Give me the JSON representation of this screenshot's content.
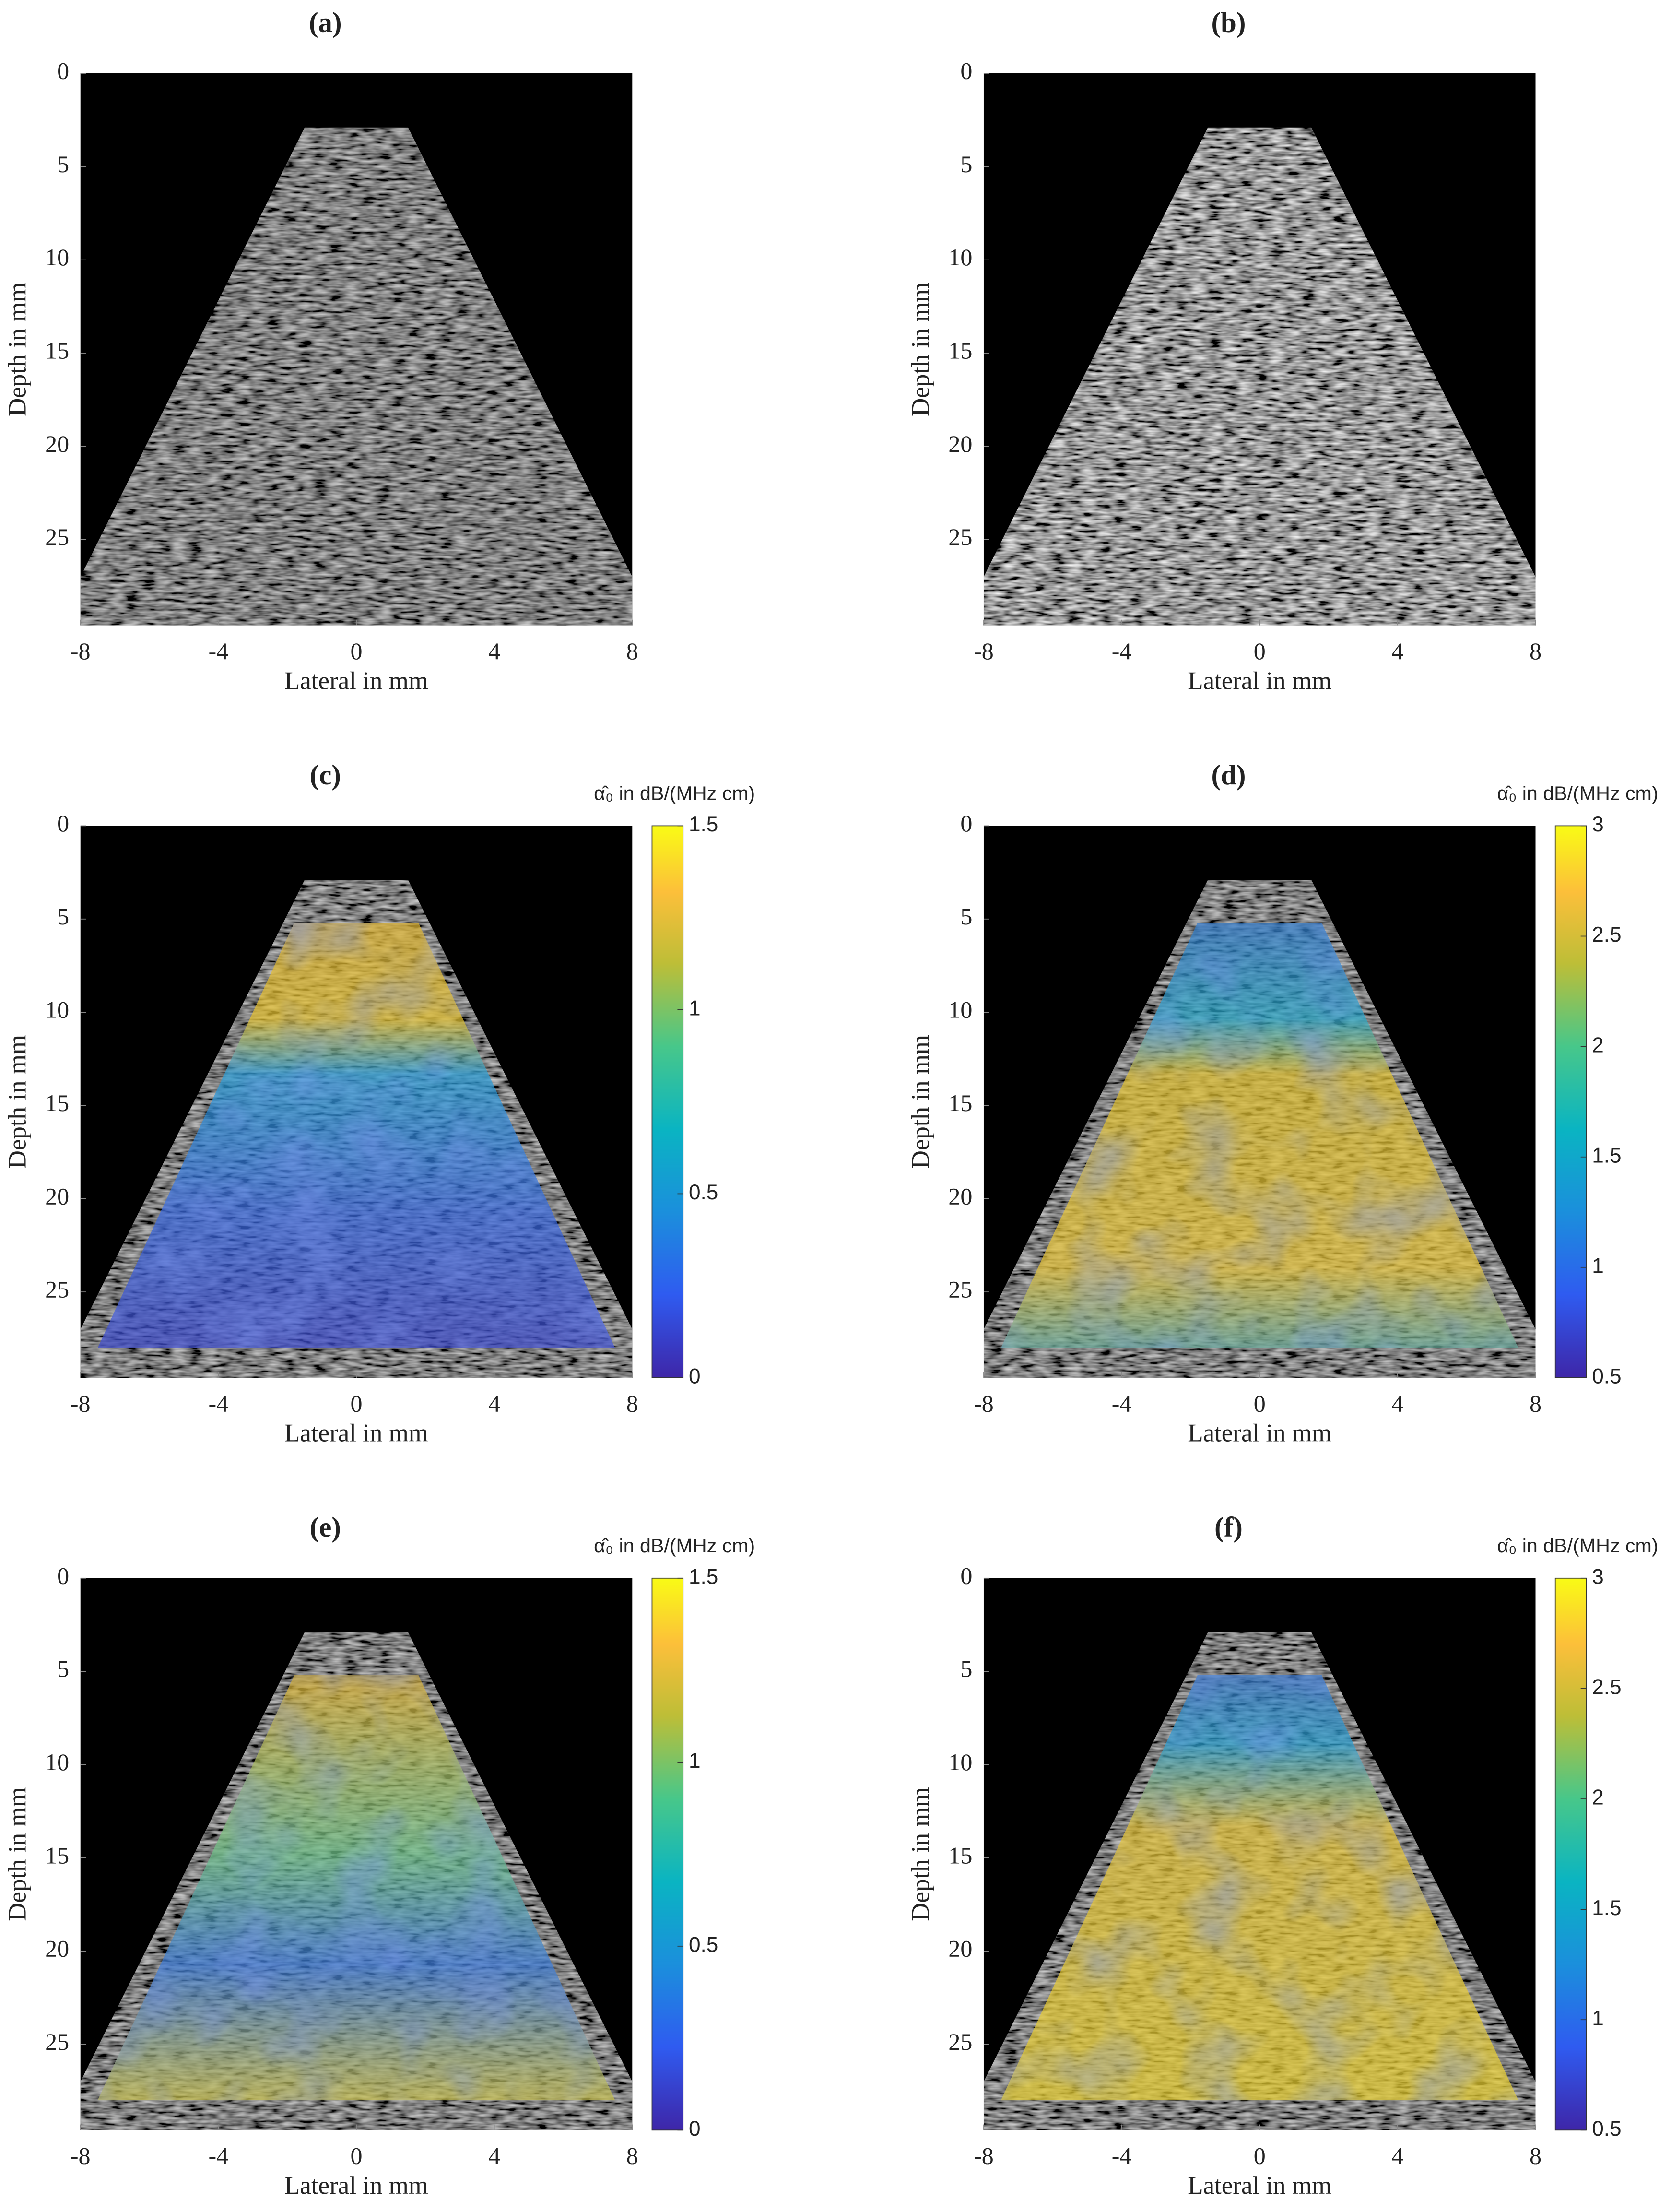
{
  "chart_data": [
    {
      "type": "image",
      "title": "(a)",
      "xlabel": "Lateral in mm",
      "ylabel": "Depth in mm",
      "xlim": [
        -8,
        8
      ],
      "ylim": [
        0,
        29.6
      ],
      "y_reversed": true,
      "xticks": [
        -8,
        -4,
        0,
        4,
        8
      ],
      "yticks": [
        0,
        5,
        10,
        15,
        20,
        25
      ]
    },
    {
      "type": "image",
      "title": "(b)",
      "xlabel": "Lateral in mm",
      "ylabel": "Depth in mm",
      "xlim": [
        -8,
        8
      ],
      "ylim": [
        0,
        29.6
      ],
      "y_reversed": true,
      "xticks": [
        -8,
        -4,
        0,
        4,
        8
      ],
      "yticks": [
        0,
        5,
        10,
        15,
        20,
        25
      ]
    },
    {
      "type": "image",
      "title": "(c)",
      "xlabel": "Lateral in mm",
      "ylabel": "Depth in mm",
      "xlim": [
        -8,
        8
      ],
      "ylim": [
        0,
        29.6
      ],
      "y_reversed": true,
      "xticks": [
        -8,
        -4,
        0,
        4,
        8
      ],
      "yticks": [
        0,
        5,
        10,
        15,
        20,
        25
      ],
      "colorbar": {
        "label": "α̂₀ in dB/(MHz cm)",
        "lim": [
          0,
          1.5
        ],
        "ticks": [
          0,
          0.5,
          1,
          1.5
        ]
      }
    },
    {
      "type": "image",
      "title": "(d)",
      "xlabel": "Lateral in mm",
      "ylabel": "Depth in mm",
      "xlim": [
        -8,
        8
      ],
      "ylim": [
        0,
        29.6
      ],
      "y_reversed": true,
      "xticks": [
        -8,
        -4,
        0,
        4,
        8
      ],
      "yticks": [
        0,
        5,
        10,
        15,
        20,
        25
      ],
      "colorbar": {
        "label": "α̂₀ in dB/(MHz cm)",
        "lim": [
          0.5,
          3
        ],
        "ticks": [
          0.5,
          1,
          1.5,
          2,
          2.5,
          3
        ]
      }
    },
    {
      "type": "image",
      "title": "(e)",
      "xlabel": "Lateral in mm",
      "ylabel": "Depth in mm",
      "xlim": [
        -8,
        8
      ],
      "ylim": [
        0,
        29.6
      ],
      "y_reversed": true,
      "xticks": [
        -8,
        -4,
        0,
        4,
        8
      ],
      "yticks": [
        0,
        5,
        10,
        15,
        20,
        25
      ],
      "colorbar": {
        "label": "α̂₀ in dB/(MHz cm)",
        "lim": [
          0,
          1.5
        ],
        "ticks": [
          0,
          0.5,
          1,
          1.5
        ]
      }
    },
    {
      "type": "image",
      "title": "(f)",
      "xlabel": "Lateral in mm",
      "ylabel": "Depth in mm",
      "xlim": [
        -8,
        8
      ],
      "ylim": [
        0,
        29.6
      ],
      "y_reversed": true,
      "xticks": [
        -8,
        -4,
        0,
        4,
        8
      ],
      "yticks": [
        0,
        5,
        10,
        15,
        20,
        25
      ],
      "colorbar": {
        "label": "α̂₀ in dB/(MHz cm)",
        "lim": [
          0.5,
          3
        ],
        "ticks": [
          0.5,
          1,
          1.5,
          2,
          2.5,
          3
        ]
      }
    }
  ]
}
